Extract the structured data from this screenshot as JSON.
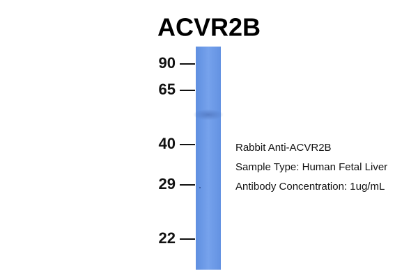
{
  "title": "ACVR2B",
  "markers": [
    "90",
    "65",
    "40",
    "29",
    "22"
  ],
  "annotations": [
    "Rabbit Anti-ACVR2B",
    "Sample Type: Human Fetal Liver",
    "Antibody Concentration: 1ug/mL"
  ]
}
